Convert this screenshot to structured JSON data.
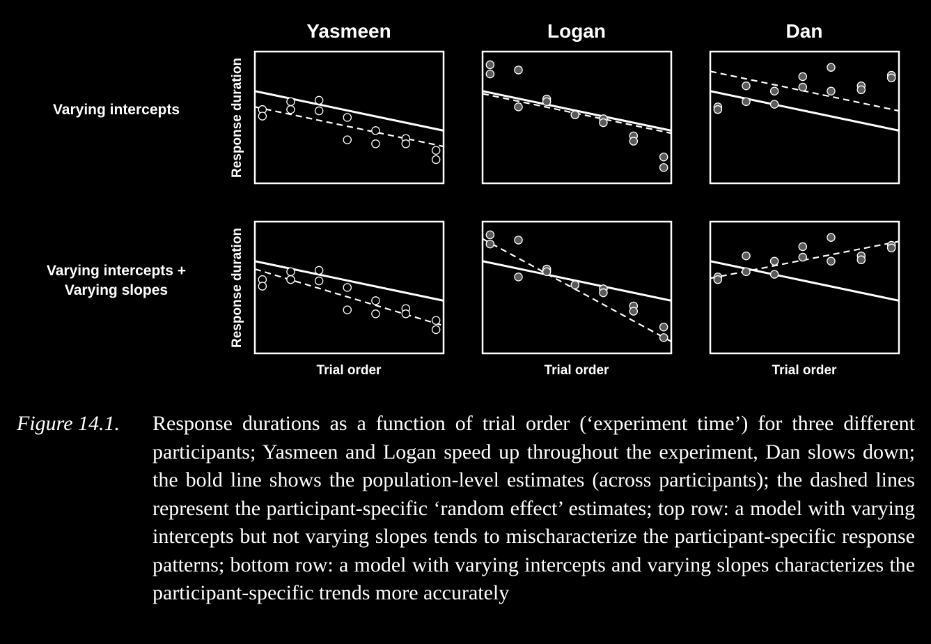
{
  "chart_data": {
    "type": "scatter",
    "columns": [
      "Yasmeen",
      "Logan",
      "Dan"
    ],
    "rows": [
      "Varying intercepts",
      "Varying intercepts + Varying slopes"
    ],
    "xlabel": "Trial order",
    "ylabel": "Response duration",
    "xlim": [
      0,
      10
    ],
    "ylim": [
      0,
      10
    ],
    "population_line": {
      "style": "solid",
      "intercept": 7.0,
      "slope": -0.3
    },
    "points": {
      "Yasmeen": {
        "x": [
          0.4,
          0.4,
          1.9,
          1.9,
          3.4,
          3.4,
          4.9,
          4.9,
          6.4,
          6.4,
          8.0,
          8.0,
          9.6,
          9.6
        ],
        "y": [
          5.6,
          5.1,
          6.2,
          5.6,
          6.3,
          5.5,
          5.0,
          3.3,
          4.0,
          3.0,
          3.4,
          3.0,
          2.5,
          1.8
        ],
        "fill": "#000000"
      },
      "Logan": {
        "x": [
          0.4,
          0.4,
          1.9,
          1.9,
          3.4,
          3.4,
          4.9,
          4.9,
          6.4,
          6.4,
          8.0,
          8.0,
          9.6,
          9.6
        ],
        "y": [
          9.0,
          8.3,
          8.6,
          5.8,
          6.4,
          6.2,
          5.2,
          5.2,
          4.9,
          4.6,
          3.6,
          3.2,
          2.0,
          1.2
        ],
        "fill": "#5a5a5a"
      },
      "Dan": {
        "x": [
          0.4,
          0.4,
          1.9,
          1.9,
          3.4,
          3.4,
          4.9,
          4.9,
          6.4,
          6.4,
          8.0,
          8.0,
          9.6,
          9.6
        ],
        "y": [
          5.8,
          5.6,
          7.4,
          6.2,
          7.0,
          6.0,
          8.1,
          7.3,
          8.8,
          7.0,
          7.4,
          7.1,
          8.2,
          8.0
        ],
        "fill": "#5a5a5a"
      }
    },
    "participant_lines": [
      {
        "row": "Varying intercepts",
        "participant": "Yasmeen",
        "style": "dashed",
        "intercept": 5.8,
        "slope": -0.3
      },
      {
        "row": "Varying intercepts",
        "participant": "Logan",
        "style": "dashed",
        "intercept": 6.8,
        "slope": -0.3
      },
      {
        "row": "Varying intercepts",
        "participant": "Dan",
        "style": "dashed",
        "intercept": 8.5,
        "slope": -0.3
      },
      {
        "row": "Varying intercepts + Varying slopes",
        "participant": "Yasmeen",
        "style": "dashed",
        "intercept": 6.4,
        "slope": -0.43
      },
      {
        "row": "Varying intercepts + Varying slopes",
        "participant": "Logan",
        "style": "dashed",
        "intercept": 8.7,
        "slope": -0.78
      },
      {
        "row": "Varying intercepts + Varying slopes",
        "participant": "Dan",
        "style": "dashed",
        "intercept": 5.7,
        "slope": 0.28
      }
    ]
  },
  "caption": {
    "label": "Figure 14.1.",
    "text": "Response durations as a function of trial order (‘experiment time’) for three different participants; Yasmeen and Logan speed up throughout the experiment, Dan slows down; the bold line shows the population-level estimates (across participants); the dashed lines represent the participant-specific ‘random effect’ estimates; top row: a model with varying intercepts but not varying slopes tends to mischaracterize the participant-specific response patterns; bottom row: a model with varying intercepts and varying slopes characterizes the participant-specific trends more accurately"
  },
  "colors": {
    "background": "#000000",
    "foreground": "#ffffff",
    "point_filled": "#5a5a5a",
    "point_hollow": "#000000"
  }
}
